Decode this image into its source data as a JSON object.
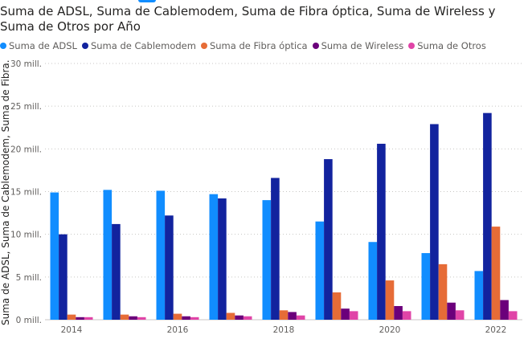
{
  "chart_data": {
    "type": "bar",
    "title": "Suma de ADSL, Suma de Cablemodem, Suma de Fibra óptica, Suma de Wireless y Suma de Otros por Año",
    "ylabel": "Suma de ADSL, Suma de Cablemodem, Suma de Fibra...",
    "xlabel": "",
    "categories": [
      "2014",
      "2015",
      "2016",
      "2017",
      "2018",
      "2019",
      "2020",
      "2021",
      "2022"
    ],
    "x_tick_labels": [
      "2014",
      "",
      "2016",
      "",
      "2018",
      "",
      "2020",
      "",
      "2022"
    ],
    "y_ticks": [
      0,
      5,
      10,
      15,
      20,
      25,
      30
    ],
    "y_tick_labels": [
      "0 mill.",
      "5 mill.",
      "10 mill.",
      "15 mill.",
      "20 mill.",
      "25 mill.",
      "30 mill."
    ],
    "ylim": [
      0,
      30
    ],
    "unit": "mill.",
    "grid": true,
    "legend_position": "top-left",
    "series": [
      {
        "name": "Suma de ADSL",
        "color": "#118DFF",
        "values": [
          14.9,
          15.2,
          15.1,
          14.7,
          14.0,
          11.5,
          9.1,
          7.8,
          5.7
        ]
      },
      {
        "name": "Suma de Cablemodem",
        "color": "#12239E",
        "values": [
          10.0,
          11.2,
          12.2,
          14.2,
          16.6,
          18.8,
          20.6,
          22.9,
          24.2
        ]
      },
      {
        "name": "Suma de Fibra óptica",
        "color": "#E66C37",
        "values": [
          0.6,
          0.6,
          0.7,
          0.8,
          1.1,
          3.2,
          4.6,
          6.5,
          10.9
        ]
      },
      {
        "name": "Suma de Wireless",
        "color": "#6B007B",
        "values": [
          0.3,
          0.4,
          0.4,
          0.5,
          0.9,
          1.3,
          1.6,
          2.0,
          2.3
        ]
      },
      {
        "name": "Suma de Otros",
        "color": "#E044A7",
        "values": [
          0.3,
          0.3,
          0.3,
          0.4,
          0.5,
          1.0,
          1.0,
          1.1,
          1.0
        ]
      }
    ]
  }
}
